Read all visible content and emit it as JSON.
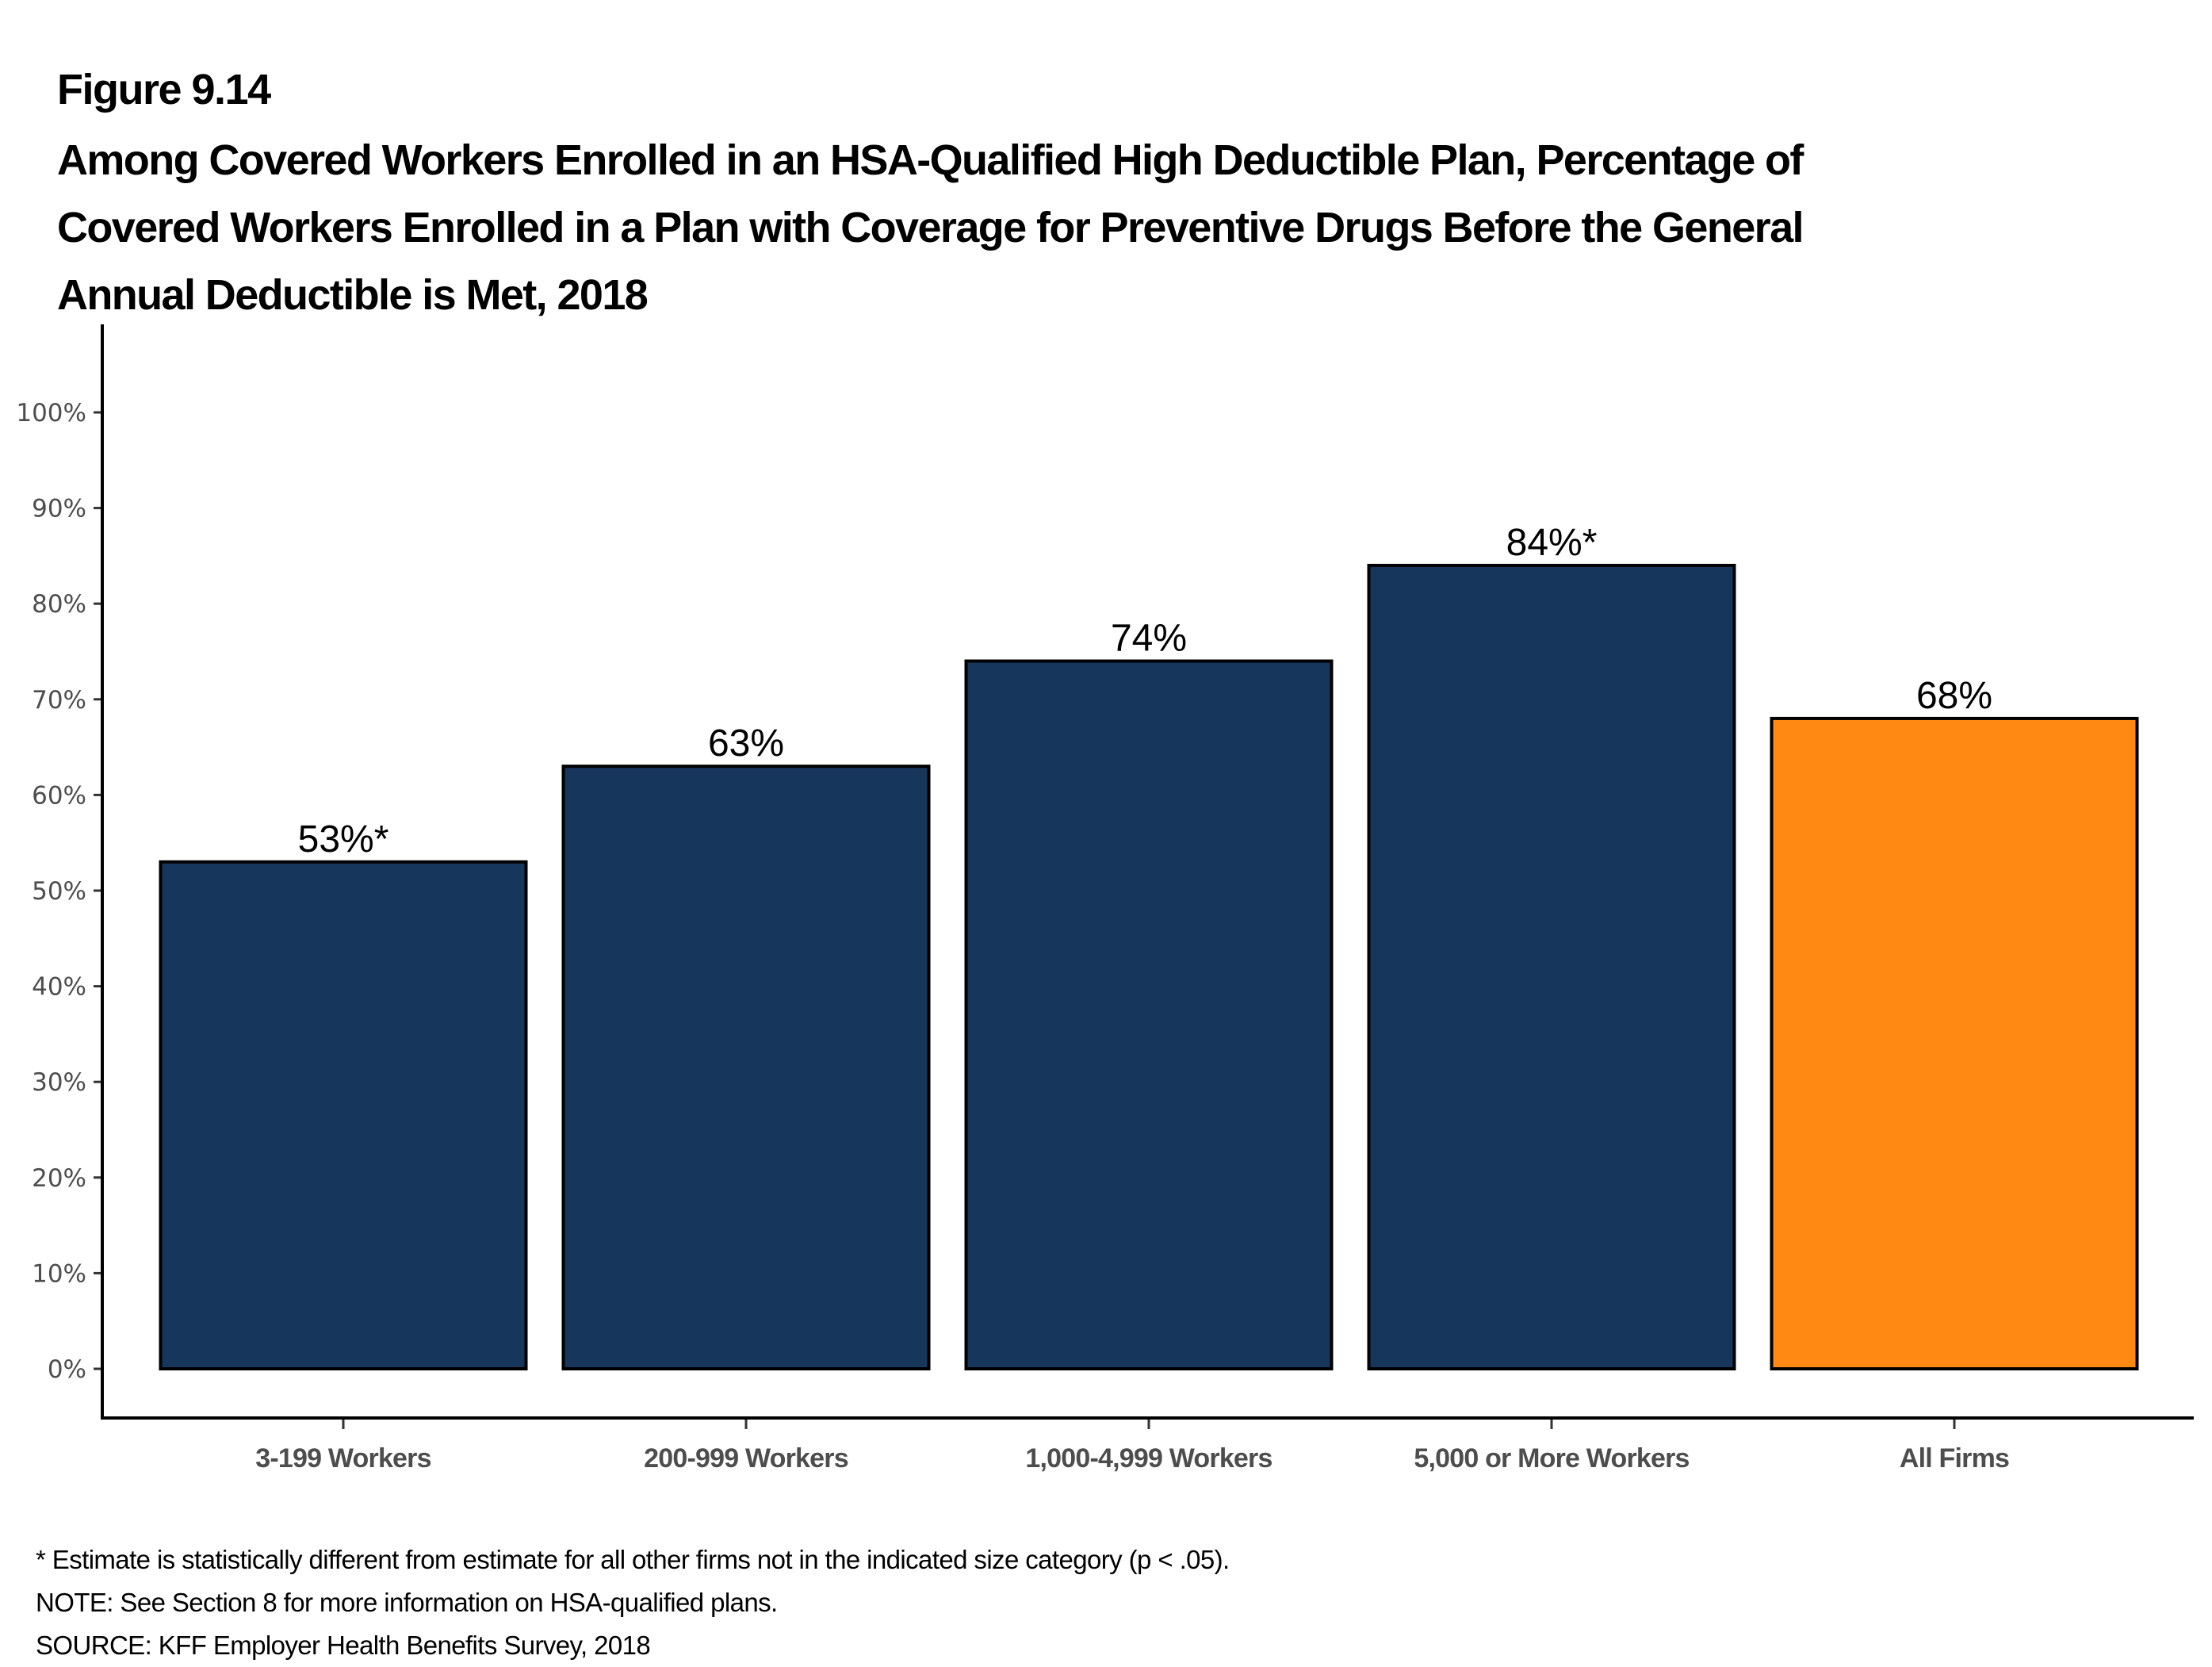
{
  "figure_label": "Figure 9.14",
  "title_lines": [
    "Among Covered Workers Enrolled in an HSA-Qualified High Deductible Plan, Percentage of",
    "Covered Workers Enrolled in a Plan with Coverage for Preventive Drugs Before the General",
    "Annual Deductible is Met, 2018"
  ],
  "chart_data": {
    "type": "bar",
    "title": "Among Covered Workers Enrolled in an HSA-Qualified High Deductible Plan, Percentage of Covered Workers Enrolled in a Plan with Coverage for Preventive Drugs Before the General Annual Deductible is Met, 2018",
    "xlabel": "",
    "ylabel": "",
    "categories": [
      "3-199 Workers",
      "200-999 Workers",
      "1,000-4,999 Workers",
      "5,000 or More Workers",
      "All Firms"
    ],
    "values": [
      53,
      63,
      74,
      84,
      68
    ],
    "data_labels": [
      "53%*",
      "63%",
      "74%",
      "84%*",
      "68%"
    ],
    "bar_colors": [
      "#17365C",
      "#17365C",
      "#17365C",
      "#17365C",
      "#FF8913"
    ],
    "ylim": [
      0,
      100
    ],
    "yticks": [
      0,
      10,
      20,
      30,
      40,
      50,
      60,
      70,
      80,
      90,
      100
    ],
    "ytick_labels": [
      "0%",
      "10%",
      "20%",
      "30%",
      "40%",
      "50%",
      "60%",
      "70%",
      "80%",
      "90%",
      "100%"
    ],
    "grid": false,
    "legend": "none"
  },
  "footnotes": [
    "* Estimate is statistically different from estimate for all other firms not in the indicated size category (p < .05).",
    "NOTE: See Section 8 for more information on HSA-qualified plans.",
    "SOURCE: KFF Employer Health Benefits Survey, 2018"
  ]
}
